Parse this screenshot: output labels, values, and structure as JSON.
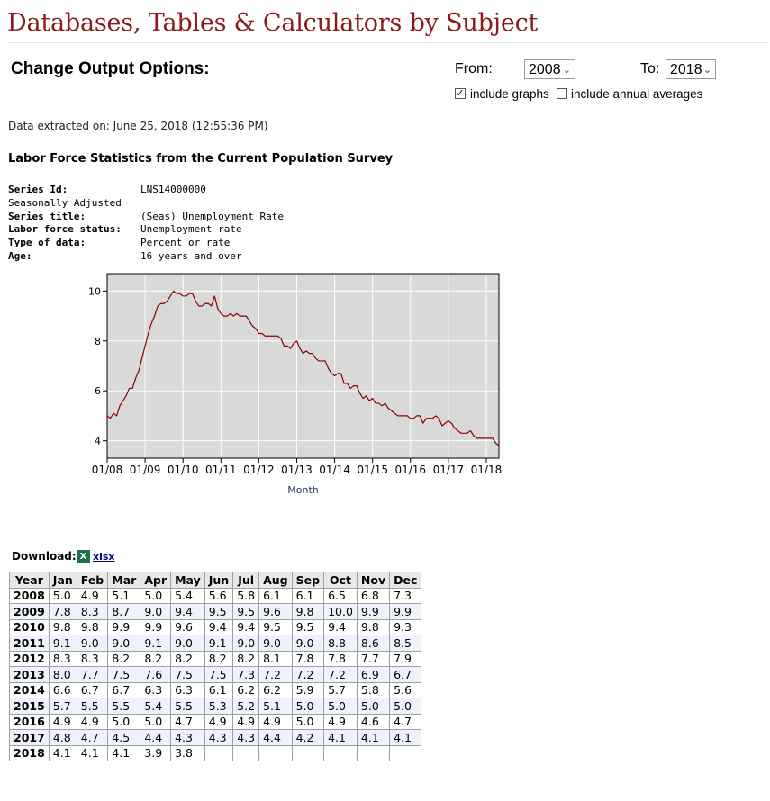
{
  "header": {
    "title": "Databases, Tables & Calculators by Subject"
  },
  "options": {
    "title": "Change Output Options:",
    "from_label": "From:",
    "from_value": "2008",
    "to_label": "To:",
    "to_value": "2018",
    "include_graphs_label": "include graphs",
    "include_graphs_checked": true,
    "include_annual_label": "include annual averages",
    "include_annual_checked": false
  },
  "extracted": "Data extracted on: June 25, 2018 (12:55:36 PM)",
  "survey_title": "Labor Force Statistics from the Current Population Survey",
  "meta": {
    "series_id_label": "Series Id:",
    "series_id": "LNS14000000",
    "adjust": "Seasonally Adjusted",
    "series_title_label": "Series title:",
    "series_title": "(Seas) Unemployment Rate",
    "lf_status_label": "Labor force status:",
    "lf_status": "Unemployment rate",
    "type_label": "Type of data:",
    "type": "Percent or rate",
    "age_label": "Age:",
    "age": "16 years and over"
  },
  "chart_data": {
    "type": "line",
    "xlabel": "Month",
    "ylabel": "",
    "ylim": [
      3.3,
      10.7
    ],
    "yticks": [
      4,
      6,
      8,
      10
    ],
    "xticks": [
      "01/08",
      "01/09",
      "01/10",
      "01/11",
      "01/12",
      "01/13",
      "01/14",
      "01/15",
      "01/16",
      "01/17",
      "01/18"
    ],
    "grid": true,
    "line_color": "#8b0000",
    "plot_bg": "#d9d9d9",
    "start": "2008-01",
    "series": [
      {
        "values": [
          5.0,
          4.9,
          5.1,
          5.0,
          5.4,
          5.6,
          5.8,
          6.1,
          6.1,
          6.5,
          6.8,
          7.3,
          7.8,
          8.3,
          8.7,
          9.0,
          9.4,
          9.5,
          9.5,
          9.6,
          9.8,
          10.0,
          9.9,
          9.9,
          9.8,
          9.8,
          9.9,
          9.9,
          9.6,
          9.4,
          9.4,
          9.5,
          9.5,
          9.4,
          9.8,
          9.3,
          9.1,
          9.0,
          9.0,
          9.1,
          9.0,
          9.1,
          9.0,
          9.0,
          9.0,
          8.8,
          8.6,
          8.5,
          8.3,
          8.3,
          8.2,
          8.2,
          8.2,
          8.2,
          8.2,
          8.1,
          7.8,
          7.8,
          7.7,
          7.9,
          8.0,
          7.7,
          7.5,
          7.6,
          7.5,
          7.5,
          7.3,
          7.2,
          7.2,
          7.2,
          6.9,
          6.7,
          6.6,
          6.7,
          6.7,
          6.3,
          6.3,
          6.1,
          6.2,
          6.2,
          5.9,
          5.7,
          5.8,
          5.6,
          5.7,
          5.5,
          5.5,
          5.4,
          5.5,
          5.3,
          5.2,
          5.1,
          5.0,
          5.0,
          5.0,
          5.0,
          4.9,
          4.9,
          5.0,
          5.0,
          4.7,
          4.9,
          4.9,
          4.9,
          5.0,
          4.9,
          4.6,
          4.7,
          4.8,
          4.7,
          4.5,
          4.4,
          4.3,
          4.3,
          4.3,
          4.4,
          4.2,
          4.1,
          4.1,
          4.1,
          4.1,
          4.1,
          4.1,
          3.9,
          3.8
        ]
      }
    ]
  },
  "download": {
    "label": "Download:",
    "icon": "excel-icon",
    "icon_text": "X",
    "link": "xlsx"
  },
  "table": {
    "headers": [
      "Year",
      "Jan",
      "Feb",
      "Mar",
      "Apr",
      "May",
      "Jun",
      "Jul",
      "Aug",
      "Sep",
      "Oct",
      "Nov",
      "Dec"
    ],
    "rows": [
      [
        "2008",
        "5.0",
        "4.9",
        "5.1",
        "5.0",
        "5.4",
        "5.6",
        "5.8",
        "6.1",
        "6.1",
        "6.5",
        "6.8",
        "7.3"
      ],
      [
        "2009",
        "7.8",
        "8.3",
        "8.7",
        "9.0",
        "9.4",
        "9.5",
        "9.5",
        "9.6",
        "9.8",
        "10.0",
        "9.9",
        "9.9"
      ],
      [
        "2010",
        "9.8",
        "9.8",
        "9.9",
        "9.9",
        "9.6",
        "9.4",
        "9.4",
        "9.5",
        "9.5",
        "9.4",
        "9.8",
        "9.3"
      ],
      [
        "2011",
        "9.1",
        "9.0",
        "9.0",
        "9.1",
        "9.0",
        "9.1",
        "9.0",
        "9.0",
        "9.0",
        "8.8",
        "8.6",
        "8.5"
      ],
      [
        "2012",
        "8.3",
        "8.3",
        "8.2",
        "8.2",
        "8.2",
        "8.2",
        "8.2",
        "8.1",
        "7.8",
        "7.8",
        "7.7",
        "7.9"
      ],
      [
        "2013",
        "8.0",
        "7.7",
        "7.5",
        "7.6",
        "7.5",
        "7.5",
        "7.3",
        "7.2",
        "7.2",
        "7.2",
        "6.9",
        "6.7"
      ],
      [
        "2014",
        "6.6",
        "6.7",
        "6.7",
        "6.3",
        "6.3",
        "6.1",
        "6.2",
        "6.2",
        "5.9",
        "5.7",
        "5.8",
        "5.6"
      ],
      [
        "2015",
        "5.7",
        "5.5",
        "5.5",
        "5.4",
        "5.5",
        "5.3",
        "5.2",
        "5.1",
        "5.0",
        "5.0",
        "5.0",
        "5.0"
      ],
      [
        "2016",
        "4.9",
        "4.9",
        "5.0",
        "5.0",
        "4.7",
        "4.9",
        "4.9",
        "4.9",
        "5.0",
        "4.9",
        "4.6",
        "4.7"
      ],
      [
        "2017",
        "4.8",
        "4.7",
        "4.5",
        "4.4",
        "4.3",
        "4.3",
        "4.3",
        "4.4",
        "4.2",
        "4.1",
        "4.1",
        "4.1"
      ],
      [
        "2018",
        "4.1",
        "4.1",
        "4.1",
        "3.9",
        "3.8",
        "",
        "",
        "",
        "",
        "",
        "",
        ""
      ]
    ]
  }
}
